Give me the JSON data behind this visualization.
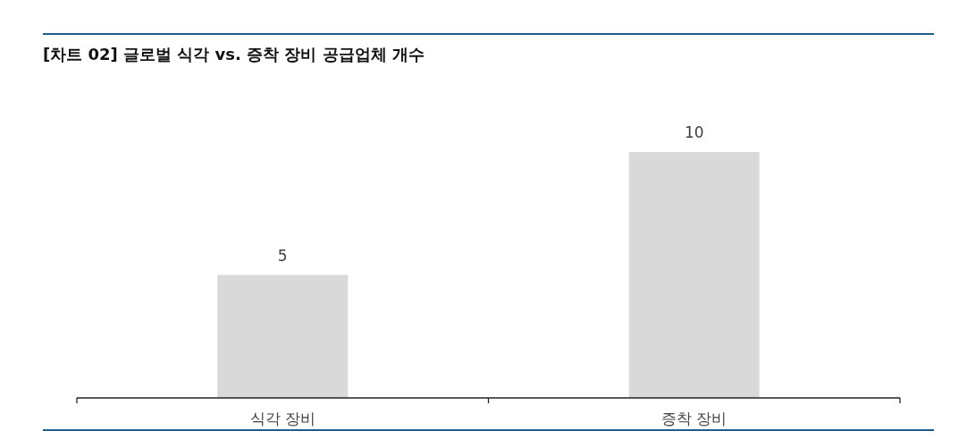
{
  "chart_data": {
    "type": "bar",
    "title": "[차트 02] 글로벌 식각 vs. 증착 장비 공급업체 개수",
    "categories": [
      "식각 장비",
      "증착 장비"
    ],
    "values": [
      5,
      10
    ],
    "color": "#d9d9d9",
    "data_labels": true
  }
}
